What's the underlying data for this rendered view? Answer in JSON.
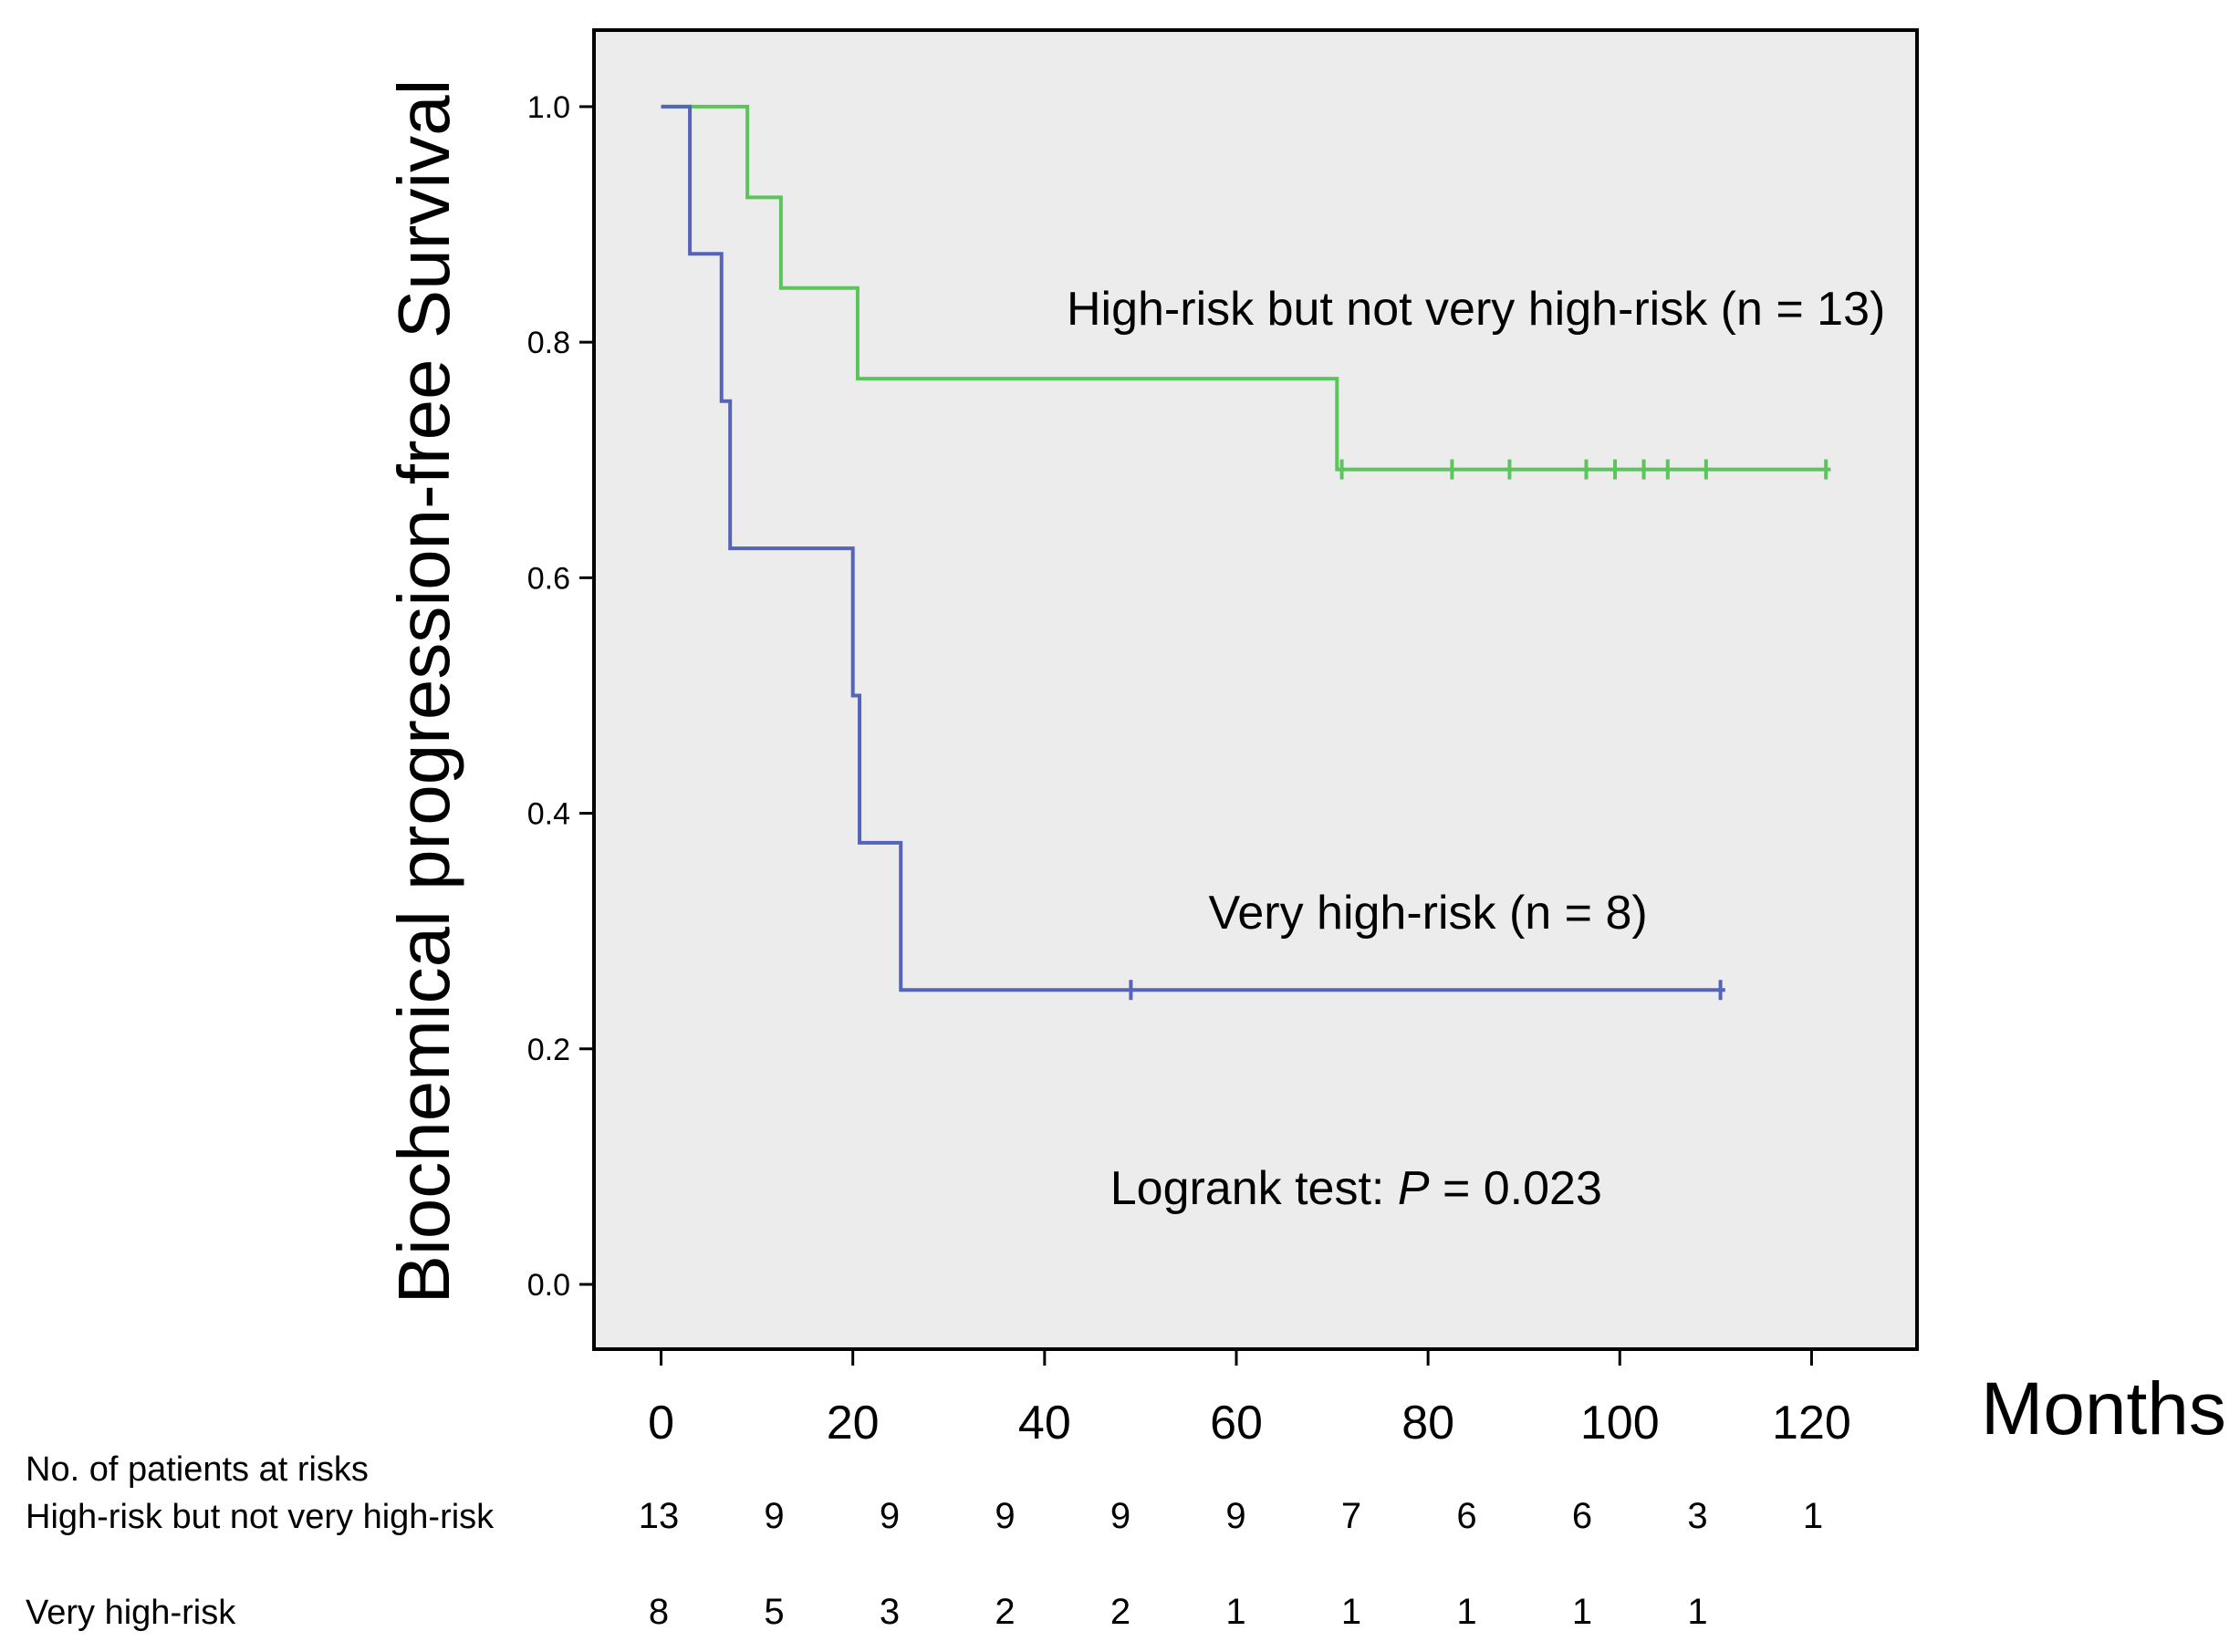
{
  "chart_data": {
    "type": "line",
    "subtype": "kaplan-meier",
    "ylabel": "Biochemical progression-free Survival",
    "xlabel": "Months",
    "xlim": [
      -7,
      131
    ],
    "ylim": [
      -0.055,
      1.065
    ],
    "xticks": [
      0,
      20,
      40,
      60,
      80,
      100,
      120
    ],
    "xtick_labels": [
      "0",
      "20",
      "40",
      "60",
      "80",
      "100",
      "120"
    ],
    "yticks": [
      0.0,
      0.2,
      0.4,
      0.6,
      0.8,
      1.0
    ],
    "ytick_labels": [
      "0.0",
      "0.2",
      "0.4",
      "0.6",
      "0.8",
      "1.0"
    ],
    "plot_background": "#ececec",
    "series": [
      {
        "name": "High-risk but not very high-risk (n = 13)",
        "color": "#5cc45c",
        "steps": [
          [
            0,
            1.0
          ],
          [
            9,
            0.923
          ],
          [
            12.5,
            0.846
          ],
          [
            20.5,
            0.769
          ],
          [
            70.5,
            0.692
          ],
          [
            122,
            0.692
          ]
        ],
        "censored": [
          71,
          82.5,
          88.5,
          96.5,
          99.5,
          102.5,
          105,
          109,
          121.5
        ],
        "label_value": [
          85,
          0.815
        ]
      },
      {
        "name": "Very high-risk (n = 8)",
        "color": "#5563b8",
        "steps": [
          [
            0,
            1.0
          ],
          [
            3,
            0.875
          ],
          [
            6.3,
            0.75
          ],
          [
            7.2,
            0.625
          ],
          [
            20,
            0.5
          ],
          [
            20.7,
            0.375
          ],
          [
            25,
            0.25
          ],
          [
            111,
            0.25
          ]
        ],
        "censored": [
          49,
          110.5
        ],
        "label_value": [
          80,
          0.302
        ]
      }
    ],
    "annotation": {
      "prefix": "Logrank test: ",
      "p_symbol": "P",
      "suffix": " =  0.023",
      "at": [
        72.5,
        0.068
      ]
    },
    "risk_table": {
      "title": "No. of patients at risks",
      "x": [
        0,
        12,
        24,
        36,
        48,
        60,
        72,
        84,
        96,
        108,
        120
      ],
      "rows": [
        {
          "label": "High-risk but not very high-risk",
          "values": [
            "13",
            "9",
            "9",
            "9",
            "9",
            "9",
            "7",
            "6",
            "6",
            "3",
            "1"
          ]
        },
        {
          "label": "Very high-risk",
          "values": [
            "8",
            "5",
            "3",
            "2",
            "2",
            "1",
            "1",
            "1",
            "1",
            "1"
          ]
        }
      ]
    }
  }
}
